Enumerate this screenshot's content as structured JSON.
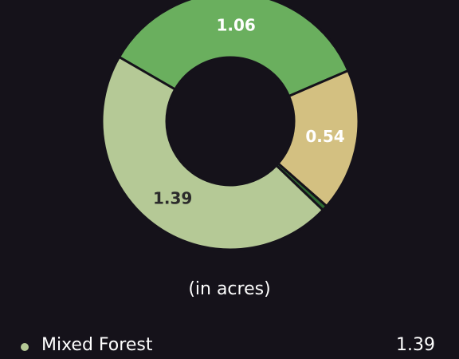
{
  "chart_data": {
    "type": "pie",
    "variant": "donut",
    "title": "",
    "values_unit_caption": "(in acres)",
    "slices": [
      {
        "label": "1.06",
        "value": 1.06,
        "color": "#6aaf5e",
        "label_color": "#ffffff"
      },
      {
        "label": "0.54",
        "value": 0.54,
        "color": "#d3c081",
        "label_color": "#ffffff"
      },
      {
        "label": "",
        "value": 0.02,
        "color": "#2e6b32",
        "label_color": "#ffffff"
      },
      {
        "label": "1.39",
        "value": 1.39,
        "color": "#b5c996",
        "label_color": "#2b2b2b"
      }
    ],
    "legend": [
      {
        "name": "Mixed Forest",
        "value": "1.39",
        "color": "#b5c996"
      }
    ]
  },
  "colors": {
    "background": "#15121a",
    "text": "#ffffff"
  }
}
